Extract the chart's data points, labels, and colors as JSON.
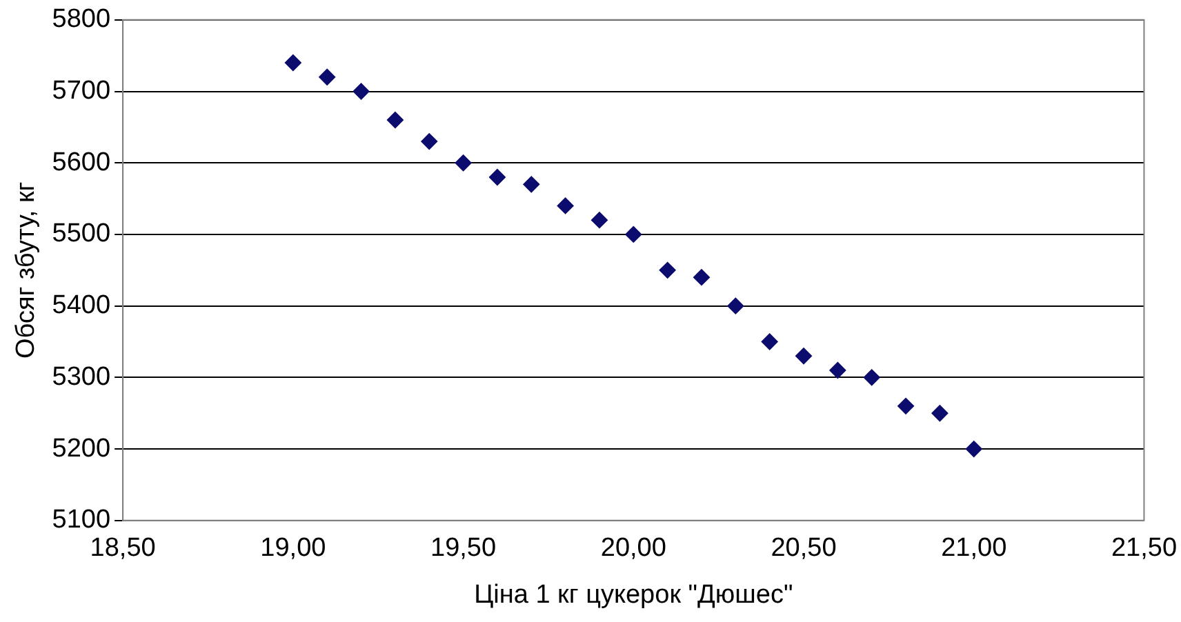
{
  "chart_data": {
    "type": "scatter",
    "xlabel": "Ціна 1 кг цукерок \"Дюшес\"",
    "ylabel": "Обсяг збуту, кг",
    "x": [
      19.0,
      19.1,
      19.2,
      19.3,
      19.4,
      19.5,
      19.6,
      19.7,
      19.8,
      19.9,
      20.0,
      20.1,
      20.2,
      20.3,
      20.4,
      20.5,
      20.6,
      20.7,
      20.8,
      20.9,
      21.0
    ],
    "series": [
      {
        "color": "#0c0c6e",
        "values": [
          5740,
          5720,
          5700,
          5660,
          5630,
          5600,
          5580,
          5570,
          5540,
          5520,
          5500,
          5450,
          5440,
          5400,
          5350,
          5330,
          5310,
          5300,
          5260,
          5250,
          5200
        ]
      }
    ],
    "xlim": [
      18.5,
      21.5
    ],
    "xticks": [
      {
        "value": 18.5,
        "label": "18,50"
      },
      {
        "value": 19,
        "label": "19,00"
      },
      {
        "value": 19.5,
        "label": "19,50"
      },
      {
        "value": 20,
        "label": "20,00"
      },
      {
        "value": 20.5,
        "label": "20,50"
      },
      {
        "value": 21,
        "label": "21,00"
      },
      {
        "value": 21.5,
        "label": "21,50"
      }
    ],
    "ylim": [
      5100,
      5800
    ],
    "yticks": [
      5100,
      5200,
      5300,
      5400,
      5500,
      5600,
      5700,
      5800
    ],
    "grid": "y",
    "marker": "diamond",
    "legend": false
  }
}
